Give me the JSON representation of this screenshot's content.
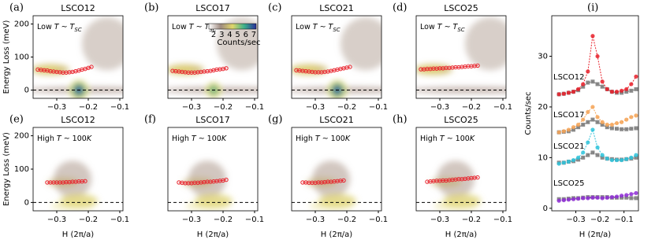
{
  "chart_data": [
    {
      "type": "scatter",
      "panel": "(a)",
      "title": "LSCO12",
      "annotation": [
        "Low ",
        "T",
        " ~ ",
        "T",
        "SC"
      ],
      "x": [
        -0.36,
        -0.35,
        -0.34,
        -0.33,
        -0.32,
        -0.31,
        -0.3,
        -0.29,
        -0.28,
        -0.27,
        -0.26,
        -0.25,
        -0.24,
        -0.23,
        -0.22,
        -0.21,
        -0.2,
        -0.19
      ],
      "values": [
        62,
        61,
        60,
        59,
        57,
        56,
        55,
        54,
        53,
        53,
        54,
        55,
        57,
        59,
        62,
        64,
        67,
        70
      ],
      "color": "#e8202a",
      "xlim": [
        -0.375,
        -0.09
      ],
      "ylim": [
        -25,
        225
      ],
      "xticks": [
        {
          "value": -0.3,
          "label": "−0.3"
        },
        {
          "value": -0.2,
          "label": "−0.2"
        },
        {
          "value": -0.1,
          "label": "−0.1"
        }
      ],
      "yticks": [
        0,
        100,
        200
      ],
      "ylabel": "Energy Loss (meV)",
      "hline": 0
    },
    {
      "type": "scatter",
      "panel": "(b)",
      "title": "LSCO17",
      "annotation": [
        "Low ",
        "T",
        " ~ ",
        "T",
        "SC"
      ],
      "x": [
        -0.36,
        -0.35,
        -0.34,
        -0.33,
        -0.32,
        -0.31,
        -0.3,
        -0.29,
        -0.28,
        -0.27,
        -0.26,
        -0.25,
        -0.24,
        -0.23,
        -0.22,
        -0.21,
        -0.2,
        -0.19
      ],
      "values": [
        58,
        57,
        56,
        55,
        54,
        53,
        53,
        53,
        54,
        55,
        56,
        57,
        58,
        60,
        62,
        63,
        64,
        66
      ],
      "color": "#e8202a",
      "xlim": [
        -0.375,
        -0.09
      ],
      "ylim": [
        -25,
        225
      ],
      "xticks": [
        {
          "value": -0.3,
          "label": "−0.3"
        },
        {
          "value": -0.2,
          "label": "−0.2"
        },
        {
          "value": -0.1,
          "label": "−0.1"
        }
      ],
      "hline": 0,
      "colorbar": {
        "label": "Counts/sec",
        "ticks": [
          2,
          3,
          4,
          5,
          6,
          7
        ]
      }
    },
    {
      "type": "scatter",
      "panel": "(c)",
      "title": "LSCO21",
      "annotation": [
        "Low ",
        "T",
        " ~ ",
        "T",
        "SC"
      ],
      "x": [
        -0.36,
        -0.35,
        -0.34,
        -0.33,
        -0.32,
        -0.31,
        -0.3,
        -0.29,
        -0.28,
        -0.27,
        -0.26,
        -0.25,
        -0.24,
        -0.23,
        -0.22,
        -0.21,
        -0.2,
        -0.19
      ],
      "values": [
        60,
        59,
        58,
        57,
        56,
        55,
        54,
        54,
        54,
        55,
        56,
        58,
        60,
        62,
        64,
        66,
        68,
        70
      ],
      "color": "#e8202a",
      "xlim": [
        -0.375,
        -0.09
      ],
      "ylim": [
        -25,
        225
      ],
      "xticks": [
        {
          "value": -0.3,
          "label": "−0.3"
        },
        {
          "value": -0.2,
          "label": "−0.2"
        },
        {
          "value": -0.1,
          "label": "−0.1"
        }
      ],
      "hline": 0
    },
    {
      "type": "scatter",
      "panel": "(d)",
      "title": "LSCO25",
      "annotation": [
        "Low ",
        "T",
        " ~ ",
        "T",
        "SC"
      ],
      "x": [
        -0.36,
        -0.35,
        -0.34,
        -0.33,
        -0.32,
        -0.31,
        -0.3,
        -0.29,
        -0.28,
        -0.27,
        -0.26,
        -0.25,
        -0.24,
        -0.23,
        -0.22,
        -0.21,
        -0.2,
        -0.19,
        -0.18
      ],
      "values": [
        63,
        63,
        64,
        64,
        65,
        65,
        66,
        66,
        67,
        67,
        68,
        69,
        69,
        70,
        71,
        72,
        72,
        73,
        74
      ],
      "color": "#e8202a",
      "xlim": [
        -0.375,
        -0.09
      ],
      "ylim": [
        -25,
        225
      ],
      "xticks": [
        {
          "value": -0.3,
          "label": "−0.3"
        },
        {
          "value": -0.2,
          "label": "−0.2"
        },
        {
          "value": -0.1,
          "label": "−0.1"
        }
      ],
      "hline": 0
    },
    {
      "type": "scatter",
      "panel": "(e)",
      "title": "LSCO12",
      "annotation": [
        "High ",
        "T",
        " ~ 100",
        "K"
      ],
      "x": [
        -0.33,
        -0.32,
        -0.31,
        -0.3,
        -0.29,
        -0.28,
        -0.27,
        -0.26,
        -0.25,
        -0.24,
        -0.23,
        -0.22,
        -0.21
      ],
      "values": [
        60,
        60,
        60,
        60,
        60,
        60,
        61,
        61,
        62,
        62,
        63,
        63,
        64
      ],
      "color": "#e8202a",
      "xlim": [
        -0.375,
        -0.09
      ],
      "ylim": [
        -25,
        225
      ],
      "xticks": [
        {
          "value": -0.3,
          "label": "−0.3"
        },
        {
          "value": -0.2,
          "label": "−0.2"
        },
        {
          "value": -0.1,
          "label": "−0.1"
        }
      ],
      "yticks": [
        0,
        100,
        200
      ],
      "ylabel": "Energy Loss (meV)",
      "xlabel": "H (2π/a)",
      "hline": 0
    },
    {
      "type": "scatter",
      "panel": "(f)",
      "title": "LSCO17",
      "annotation": [
        "High ",
        "T",
        " ~ 100",
        "K"
      ],
      "x": [
        -0.34,
        -0.33,
        -0.32,
        -0.31,
        -0.3,
        -0.29,
        -0.28,
        -0.27,
        -0.26,
        -0.25,
        -0.24,
        -0.23,
        -0.22,
        -0.21,
        -0.2,
        -0.19
      ],
      "values": [
        60,
        59,
        58,
        58,
        58,
        59,
        59,
        60,
        61,
        62,
        62,
        63,
        64,
        65,
        66,
        68
      ],
      "color": "#e8202a",
      "xlim": [
        -0.375,
        -0.09
      ],
      "ylim": [
        -25,
        225
      ],
      "xticks": [
        {
          "value": -0.3,
          "label": "−0.3"
        },
        {
          "value": -0.2,
          "label": "−0.2"
        },
        {
          "value": -0.1,
          "label": "−0.1"
        }
      ],
      "xlabel": "H (2π/a)",
      "hline": 0
    },
    {
      "type": "scatter",
      "panel": "(g)",
      "title": "LSCO21",
      "annotation": [
        "High ",
        "T",
        " ~ 100",
        "K"
      ],
      "x": [
        -0.34,
        -0.33,
        -0.32,
        -0.31,
        -0.3,
        -0.29,
        -0.28,
        -0.27,
        -0.26,
        -0.25,
        -0.24,
        -0.23,
        -0.22,
        -0.21
      ],
      "values": [
        60,
        60,
        59,
        59,
        59,
        60,
        60,
        61,
        62,
        62,
        63,
        64,
        65,
        66
      ],
      "color": "#e8202a",
      "xlim": [
        -0.375,
        -0.09
      ],
      "ylim": [
        -25,
        225
      ],
      "xticks": [
        {
          "value": -0.3,
          "label": "−0.3"
        },
        {
          "value": -0.2,
          "label": "−0.2"
        },
        {
          "value": -0.1,
          "label": "−0.1"
        }
      ],
      "xlabel": "H (2π/a)",
      "hline": 0
    },
    {
      "type": "scatter",
      "panel": "(h)",
      "title": "LSCO25",
      "annotation": [
        "High ",
        "T",
        " ~ 100",
        "K"
      ],
      "x": [
        -0.34,
        -0.33,
        -0.32,
        -0.31,
        -0.3,
        -0.29,
        -0.28,
        -0.27,
        -0.26,
        -0.25,
        -0.24,
        -0.23,
        -0.22,
        -0.21,
        -0.2,
        -0.19,
        -0.18
      ],
      "values": [
        62,
        63,
        64,
        65,
        65,
        66,
        66,
        67,
        68,
        69,
        70,
        70,
        71,
        72,
        73,
        74,
        75
      ],
      "color": "#e8202a",
      "xlim": [
        -0.375,
        -0.09
      ],
      "ylim": [
        -25,
        225
      ],
      "xticks": [
        {
          "value": -0.3,
          "label": "−0.3"
        },
        {
          "value": -0.2,
          "label": "−0.2"
        },
        {
          "value": -0.1,
          "label": "−0.1"
        }
      ],
      "xlabel": "H (2π/a)",
      "hline": 0
    },
    {
      "type": "line",
      "panel": "(i)",
      "xlabel": "H (2π/a)",
      "ylabel": "Counts/sec",
      "xlim": [
        -0.4,
        -0.04
      ],
      "ylim": [
        -0.5,
        38
      ],
      "xticks": [
        {
          "value": -0.3,
          "label": "−0.3"
        },
        {
          "value": -0.2,
          "label": "−0.2"
        },
        {
          "value": -0.1,
          "label": "−0.1"
        }
      ],
      "yticks": [
        0,
        10,
        20,
        30
      ],
      "x": [
        -0.37,
        -0.35,
        -0.33,
        -0.31,
        -0.29,
        -0.27,
        -0.25,
        -0.23,
        -0.21,
        -0.19,
        -0.17,
        -0.15,
        -0.13,
        -0.11,
        -0.09,
        -0.07,
        -0.05
      ],
      "series": [
        {
          "color": "#777777",
          "marker": "square",
          "values": [
            22.5,
            22.6,
            22.8,
            23,
            23.3,
            24,
            24.8,
            25,
            24.5,
            24,
            23.5,
            23,
            22.8,
            22.8,
            23,
            23.2,
            23.5
          ]
        },
        {
          "name": "LSCO12",
          "color": "#e8202a",
          "marker": "circle",
          "values": [
            22.5,
            22.6,
            22.8,
            23,
            23.5,
            24.5,
            27,
            34,
            30,
            25,
            23.5,
            23,
            23,
            23.2,
            23.5,
            24.5,
            26
          ]
        },
        {
          "color": "#777777",
          "marker": "square",
          "values": [
            15,
            15.1,
            15.2,
            15.5,
            16,
            16.5,
            17,
            17.5,
            17,
            16.5,
            16,
            15.8,
            15.7,
            15.6,
            15.6,
            15.7,
            15.8
          ]
        },
        {
          "name": "LSCO17",
          "color": "#f4a356",
          "marker": "circle",
          "values": [
            15,
            15.2,
            15.5,
            16,
            16.5,
            17.5,
            19,
            20,
            18,
            17,
            16.5,
            16.5,
            16.8,
            17,
            17.5,
            18,
            18.3
          ]
        },
        {
          "color": "#777777",
          "marker": "square",
          "values": [
            9,
            9,
            9.2,
            9.3,
            9.6,
            10,
            10.5,
            11,
            10.5,
            10,
            9.8,
            9.7,
            9.6,
            9.6,
            9.7,
            9.8,
            10
          ]
        },
        {
          "name": "LSCO21",
          "color": "#2ec3da",
          "marker": "circle",
          "values": [
            8.8,
            9,
            9.2,
            9.5,
            10,
            11,
            13,
            15.5,
            12,
            10.5,
            9.8,
            9.5,
            9.5,
            9.5,
            9.7,
            10,
            10.5
          ]
        },
        {
          "color": "#777777",
          "marker": "square",
          "values": [
            1.8,
            1.8,
            1.9,
            2,
            2,
            2.1,
            2.2,
            2.2,
            2.2,
            2.2,
            2.2,
            2.1,
            2.1,
            2.1,
            2.1,
            2,
            2
          ]
        },
        {
          "name": "LSCO25",
          "color": "#8f2fd6",
          "marker": "circle",
          "values": [
            1.5,
            1.6,
            1.7,
            1.8,
            1.9,
            2,
            2,
            2.1,
            2.1,
            2,
            2.1,
            2.2,
            2.3,
            2.5,
            2.6,
            2.8,
            3
          ]
        }
      ]
    }
  ]
}
